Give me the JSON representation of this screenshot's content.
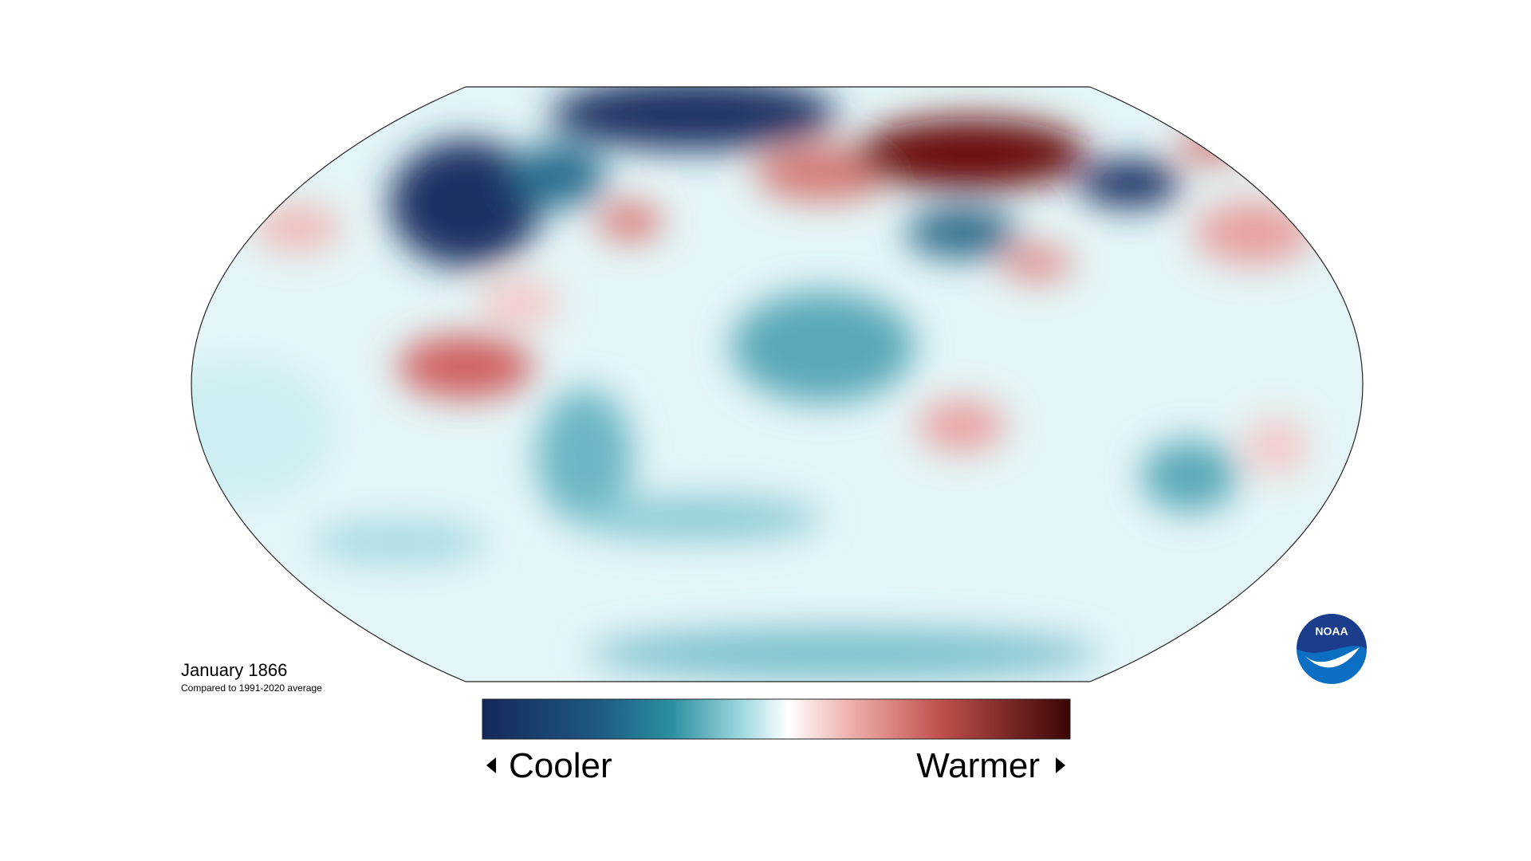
{
  "map": {
    "title": "January 1866",
    "subtitle": "Compared to 1991-2020 average"
  },
  "legend": {
    "low": "Cooler",
    "high": "Warmer"
  },
  "logo": {
    "text": "NOAA"
  }
}
